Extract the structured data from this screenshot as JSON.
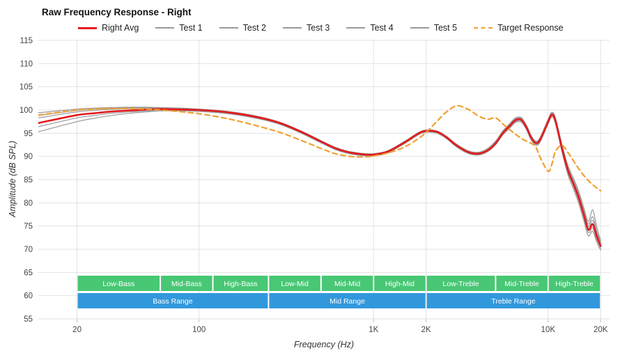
{
  "header": {
    "title": "Raw Frequency Response - Right"
  },
  "axes": {
    "y_title": "Amplitude (dB SPL)",
    "x_title": "Frequency (Hz)",
    "y_ticks": [
      55,
      60,
      65,
      70,
      75,
      80,
      85,
      90,
      95,
      100,
      105,
      110,
      115
    ],
    "x_ticks": [
      {
        "f": 20,
        "label": "20"
      },
      {
        "f": 100,
        "label": "100"
      },
      {
        "f": 1000,
        "label": "1K"
      },
      {
        "f": 2000,
        "label": "2K"
      },
      {
        "f": 10000,
        "label": "10K"
      },
      {
        "f": 20000,
        "label": "20K"
      }
    ]
  },
  "colors": {
    "red": "#e41a1c",
    "gray": "#999999",
    "orange": "#f0a030",
    "band_green": "#48c774",
    "band_blue": "#3298dc",
    "grid": "#e2e2e2",
    "tick_text": "#444444",
    "band_text": "#ffffff"
  },
  "bands": {
    "sub": [
      {
        "label": "Low-Bass",
        "from": 20,
        "to": 60
      },
      {
        "label": "Mid-Bass",
        "from": 60,
        "to": 120
      },
      {
        "label": "High-Bass",
        "from": 120,
        "to": 250
      },
      {
        "label": "Low-Mid",
        "from": 250,
        "to": 500
      },
      {
        "label": "Mid-Mid",
        "from": 500,
        "to": 1000
      },
      {
        "label": "High-Mid",
        "from": 1000,
        "to": 2000
      },
      {
        "label": "Low-Treble",
        "from": 2000,
        "to": 5000
      },
      {
        "label": "Mid-Treble",
        "from": 5000,
        "to": 10000
      },
      {
        "label": "High-Treble",
        "from": 10000,
        "to": 20000
      }
    ],
    "main": [
      {
        "label": "Bass Range",
        "from": 20,
        "to": 250
      },
      {
        "label": "Mid Range",
        "from": 250,
        "to": 2000
      },
      {
        "label": "Treble Range",
        "from": 2000,
        "to": 20000
      }
    ]
  },
  "chart_data": {
    "type": "line",
    "title": "Raw Frequency Response - Right",
    "xlabel": "Frequency (Hz)",
    "ylabel": "Amplitude (dB SPL)",
    "x_scale": "log",
    "xlim": [
      12,
      22500
    ],
    "ylim": [
      55,
      115
    ],
    "grid": true,
    "legend_position": "top",
    "x": [
      12,
      20,
      25,
      30,
      40,
      50,
      60,
      80,
      100,
      130,
      160,
      200,
      250,
      300,
      400,
      500,
      600,
      700,
      800,
      900,
      1000,
      1200,
      1500,
      1800,
      2000,
      2300,
      2600,
      3000,
      3500,
      4000,
      4500,
      5000,
      5500,
      6000,
      6500,
      7000,
      7500,
      8000,
      8500,
      9000,
      10000,
      10500,
      11000,
      12000,
      13000,
      14000,
      15000,
      16000,
      17000,
      18000,
      19000,
      20000
    ],
    "series": [
      {
        "name": "Right Avg",
        "color": "#e41a1c",
        "width": 2.6,
        "dash": null,
        "z": 6,
        "legend_index": 0,
        "values": [
          97.2,
          98.9,
          99.3,
          99.6,
          99.9,
          100.1,
          100.2,
          100.1,
          100.0,
          99.7,
          99.3,
          98.7,
          97.9,
          97.0,
          95.0,
          93.2,
          91.8,
          91.0,
          90.6,
          90.4,
          90.4,
          91.0,
          93.0,
          94.9,
          95.5,
          95.3,
          94.2,
          92.3,
          90.9,
          90.6,
          91.3,
          92.8,
          95.0,
          96.5,
          97.8,
          97.9,
          96.3,
          94.0,
          92.9,
          93.6,
          97.5,
          99.0,
          97.8,
          91.8,
          87.0,
          84.0,
          81.0,
          77.5,
          74.2,
          75.4,
          72.8,
          70.7
        ]
      },
      {
        "name": "Test 1",
        "color": "#999999",
        "width": 1.2,
        "dash": null,
        "z": 1,
        "legend_index": 1,
        "values": [
          99.4,
          100.2,
          100.4,
          100.5,
          100.6,
          100.6,
          100.5,
          100.4,
          100.2,
          99.9,
          99.5,
          98.9,
          98.1,
          97.2,
          95.2,
          93.4,
          92.0,
          91.2,
          90.8,
          90.6,
          90.6,
          91.2,
          93.2,
          95.1,
          95.7,
          95.5,
          94.4,
          92.6,
          91.2,
          90.9,
          91.7,
          93.3,
          95.5,
          97.0,
          98.3,
          98.4,
          96.8,
          94.5,
          93.3,
          94.1,
          98.0,
          99.5,
          98.4,
          92.6,
          88.0,
          85.2,
          82.4,
          79.0,
          76.0,
          78.5,
          74.8,
          71.8
        ]
      },
      {
        "name": "Test 2",
        "color": "#999999",
        "width": 1.2,
        "dash": null,
        "z": 2,
        "legend_index": 2,
        "values": [
          98.3,
          99.6,
          99.9,
          100.1,
          100.3,
          100.4,
          100.4,
          100.3,
          100.1,
          99.8,
          99.4,
          98.8,
          98.0,
          97.1,
          95.1,
          93.3,
          91.9,
          91.1,
          90.7,
          90.5,
          90.5,
          91.1,
          93.1,
          95.0,
          95.6,
          95.4,
          94.3,
          92.4,
          91.0,
          90.7,
          91.4,
          92.9,
          95.1,
          96.6,
          97.9,
          98.0,
          96.4,
          94.1,
          93.0,
          93.7,
          97.6,
          99.1,
          97.9,
          92.0,
          87.3,
          84.4,
          81.5,
          78.1,
          74.9,
          76.2,
          73.5,
          71.2
        ]
      },
      {
        "name": "Test 3",
        "color": "#999999",
        "width": 1.2,
        "dash": null,
        "z": 3,
        "legend_index": 3,
        "values": [
          96.4,
          98.3,
          98.8,
          99.2,
          99.6,
          99.8,
          99.9,
          99.9,
          99.8,
          99.5,
          99.1,
          98.5,
          97.7,
          96.8,
          94.8,
          93.0,
          91.6,
          90.8,
          90.4,
          90.2,
          90.2,
          90.8,
          92.8,
          94.7,
          95.3,
          95.1,
          94.0,
          92.1,
          90.7,
          90.4,
          91.1,
          92.6,
          94.8,
          96.2,
          97.5,
          97.6,
          96.0,
          93.7,
          92.6,
          93.3,
          97.2,
          98.7,
          97.4,
          91.3,
          86.5,
          83.5,
          80.4,
          76.9,
          73.6,
          74.6,
          72.1,
          70.2
        ]
      },
      {
        "name": "Test 4",
        "color": "#999999",
        "width": 1.2,
        "dash": null,
        "z": 4,
        "legend_index": 4,
        "values": [
          95.3,
          97.5,
          98.2,
          98.7,
          99.3,
          99.6,
          99.8,
          99.8,
          99.7,
          99.4,
          99.0,
          98.4,
          97.6,
          96.7,
          94.7,
          92.9,
          91.5,
          90.7,
          90.3,
          90.1,
          90.1,
          90.7,
          92.7,
          94.6,
          95.2,
          95.0,
          93.9,
          92.0,
          90.6,
          90.3,
          91.0,
          92.5,
          94.6,
          96.0,
          97.3,
          97.4,
          95.8,
          93.5,
          92.4,
          93.1,
          97.0,
          98.5,
          97.1,
          91.0,
          86.0,
          82.9,
          79.8,
          76.2,
          72.9,
          73.9,
          71.5,
          69.8
        ]
      },
      {
        "name": "Test 5",
        "color": "#999999",
        "width": 1.2,
        "dash": null,
        "z": 5,
        "legend_index": 5,
        "values": [
          98.8,
          99.9,
          100.2,
          100.3,
          100.5,
          100.5,
          100.5,
          100.4,
          100.2,
          99.9,
          99.5,
          98.9,
          98.1,
          97.1,
          95.1,
          93.3,
          91.9,
          91.1,
          90.7,
          90.5,
          90.5,
          91.1,
          93.1,
          95.0,
          95.6,
          95.4,
          94.3,
          92.5,
          91.1,
          90.8,
          91.5,
          93.1,
          95.3,
          96.8,
          98.1,
          98.2,
          96.6,
          94.3,
          93.1,
          93.9,
          97.8,
          99.3,
          98.1,
          92.3,
          87.6,
          84.7,
          81.9,
          78.5,
          75.4,
          77.0,
          73.9,
          71.4
        ]
      },
      {
        "name": "Target Response",
        "color": "#f0a030",
        "width": 2.2,
        "dash": "7 5",
        "z": 7,
        "legend_index": 6,
        "values": [
          98.9,
          100.0,
          100.2,
          100.3,
          100.3,
          100.2,
          100.0,
          99.6,
          99.2,
          98.5,
          97.8,
          96.9,
          95.9,
          95.0,
          93.2,
          91.7,
          90.6,
          90.1,
          89.9,
          89.9,
          90.1,
          90.7,
          92.0,
          93.8,
          95.2,
          97.5,
          99.5,
          100.9,
          100.1,
          98.7,
          98.0,
          98.3,
          97.0,
          95.8,
          94.8,
          93.9,
          93.3,
          92.8,
          92.0,
          89.8,
          86.8,
          88.3,
          91.0,
          92.4,
          90.8,
          89.0,
          87.3,
          85.9,
          84.8,
          83.9,
          83.2,
          82.6
        ]
      }
    ]
  }
}
